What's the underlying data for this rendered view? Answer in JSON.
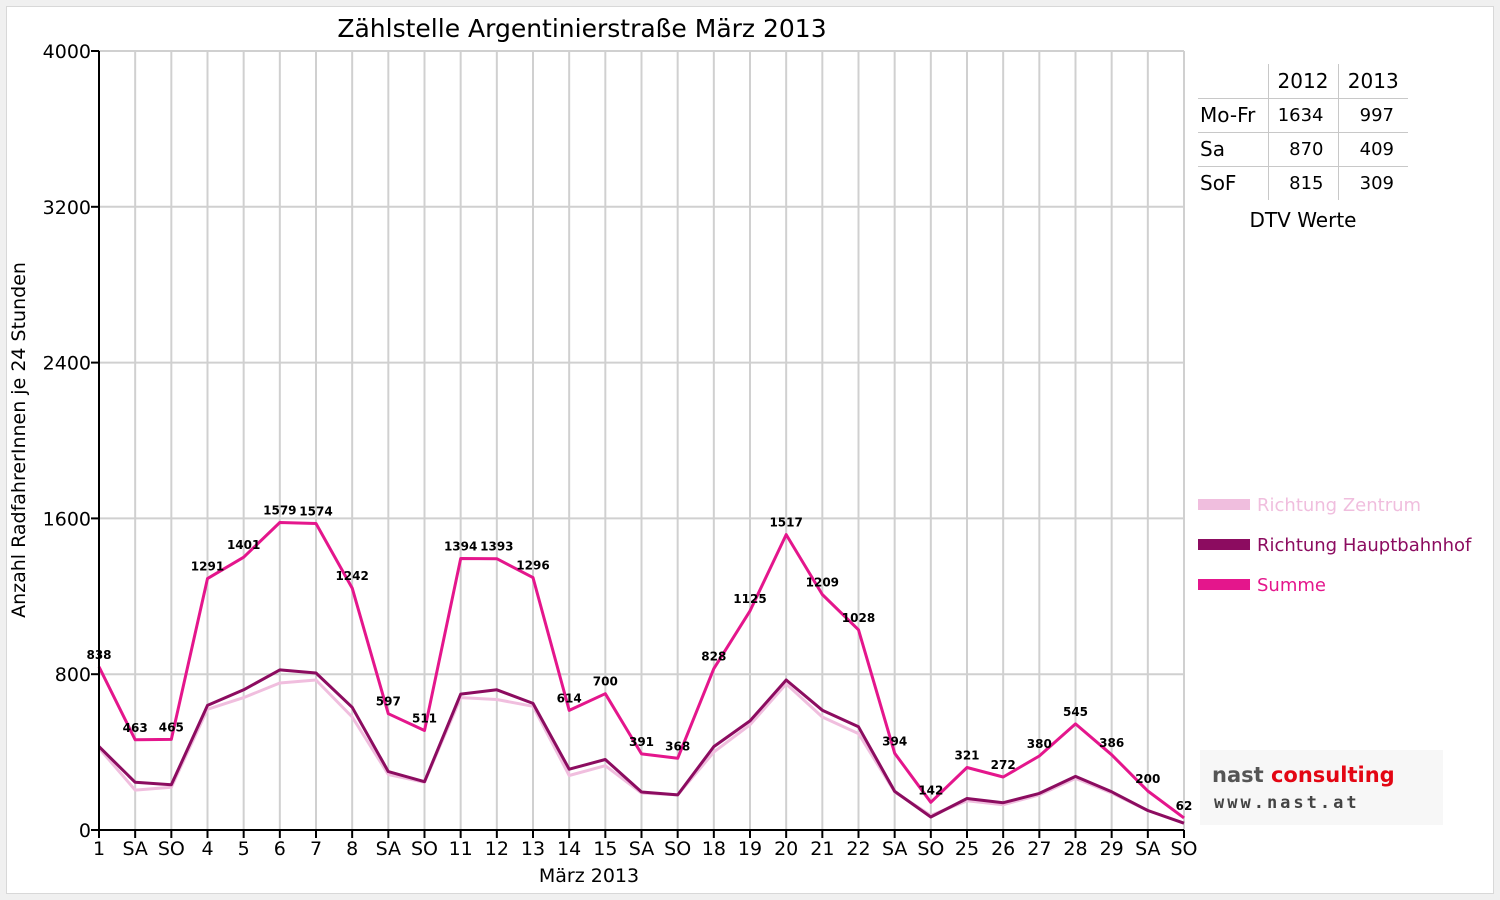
{
  "chart_data": {
    "type": "line",
    "title": "Zählstelle Argentinierstraße März 2013",
    "xlabel": "März 2013",
    "ylabel": "Anzahl RadfahrerInnen je 24 Stunden",
    "ylim": [
      0,
      4000
    ],
    "yticks": [
      "0",
      "800",
      "1600",
      "2400",
      "3200",
      "4000"
    ],
    "categories": [
      "1",
      "SA",
      "SO",
      "4",
      "5",
      "6",
      "7",
      "8",
      "SA",
      "SO",
      "11",
      "12",
      "13",
      "14",
      "15",
      "SA",
      "SO",
      "18",
      "19",
      "20",
      "21",
      "22",
      "SA",
      "SO",
      "25",
      "26",
      "27",
      "28",
      "29",
      "SA",
      "SO"
    ],
    "weekend_positions": [
      2,
      9,
      16,
      23,
      30
    ],
    "grid": true,
    "legend_position": "right",
    "series": [
      {
        "name": "Richtung Zentrum",
        "color": "#f0bede",
        "values": [
          420,
          205,
          220,
          620,
          680,
          755,
          770,
          580,
          285,
          245,
          680,
          670,
          635,
          280,
          330,
          190,
          180,
          400,
          540,
          750,
          580,
          495,
          195,
          75,
          150,
          130,
          180,
          265,
          190,
          100,
          35
        ]
      },
      {
        "name": "Richtung Hauptbahnhof",
        "color": "#8c0c60",
        "values": [
          428,
          245,
          232,
          640,
          720,
          822,
          806,
          630,
          300,
          248,
          698,
          720,
          650,
          312,
          362,
          195,
          180,
          428,
          560,
          770,
          615,
          530,
          198,
          67,
          162,
          140,
          188,
          275,
          196,
          100,
          35
        ]
      },
      {
        "name": "Summe",
        "color": "#e4168c",
        "values": [
          838,
          463,
          465,
          1291,
          1401,
          1579,
          1574,
          1242,
          597,
          511,
          1394,
          1393,
          1296,
          614,
          700,
          391,
          368,
          828,
          1125,
          1517,
          1209,
          1028,
          394,
          142,
          321,
          272,
          380,
          545,
          386,
          200,
          62
        ],
        "labels": [
          "838",
          "463",
          "465",
          "1291",
          "1401",
          "1579",
          "1574",
          "1242",
          "597",
          "511",
          "1394",
          "1393",
          "1296",
          "614",
          "700",
          "391",
          "368",
          "828",
          "1125",
          "1517",
          "1209",
          "1028",
          "394",
          "142",
          "321",
          "272",
          "380",
          "545",
          "386",
          "200",
          "62"
        ]
      }
    ]
  },
  "dtv_table": {
    "header": [
      "2012",
      "2013"
    ],
    "rows": [
      {
        "label": "Mo-Fr",
        "v2012": "1634",
        "v2013": "997"
      },
      {
        "label": "Sa",
        "v2012": "870",
        "v2013": "409"
      },
      {
        "label": "SoF",
        "v2012": "815",
        "v2013": "309"
      }
    ],
    "caption": "DTV Werte"
  },
  "logo": {
    "name_part1": "nast",
    "name_part2": "consulting",
    "url": "www.nast.at"
  },
  "colors": {
    "weekend_label": "#ff0000",
    "grid": "#d0d0d0"
  }
}
